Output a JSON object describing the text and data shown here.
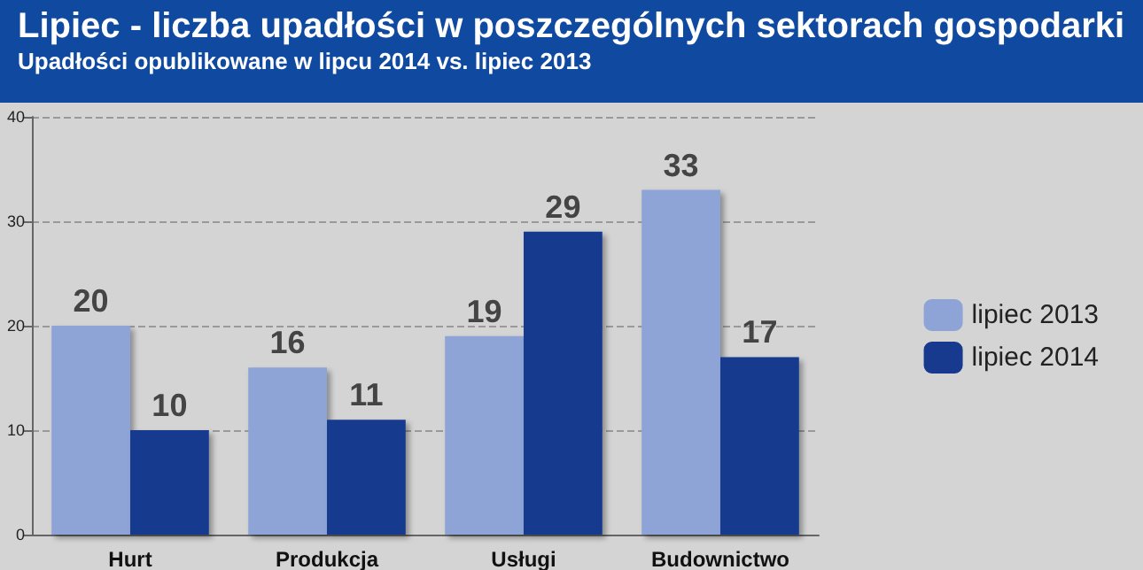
{
  "chart_data": {
    "type": "bar",
    "title": "Lipiec - liczba upadłości w poszczególnych sektorach gospodarki",
    "subtitle": "Upadłości opublikowane w lipcu 2014 vs. lipiec 2013",
    "categories": [
      "Hurt",
      "Produkcja",
      "Usługi",
      "Budownictwo"
    ],
    "series": [
      {
        "name": "lipiec 2013",
        "color": "#8ea4d6",
        "values": [
          20,
          16,
          19,
          33
        ]
      },
      {
        "name": "lipiec 2014",
        "color": "#173a8e",
        "values": [
          10,
          11,
          29,
          17
        ]
      }
    ],
    "ylim": [
      0,
      40
    ],
    "yticks": [
      0,
      10,
      20,
      30,
      40
    ],
    "grid": "y",
    "legend": "right",
    "data_labels": true
  }
}
